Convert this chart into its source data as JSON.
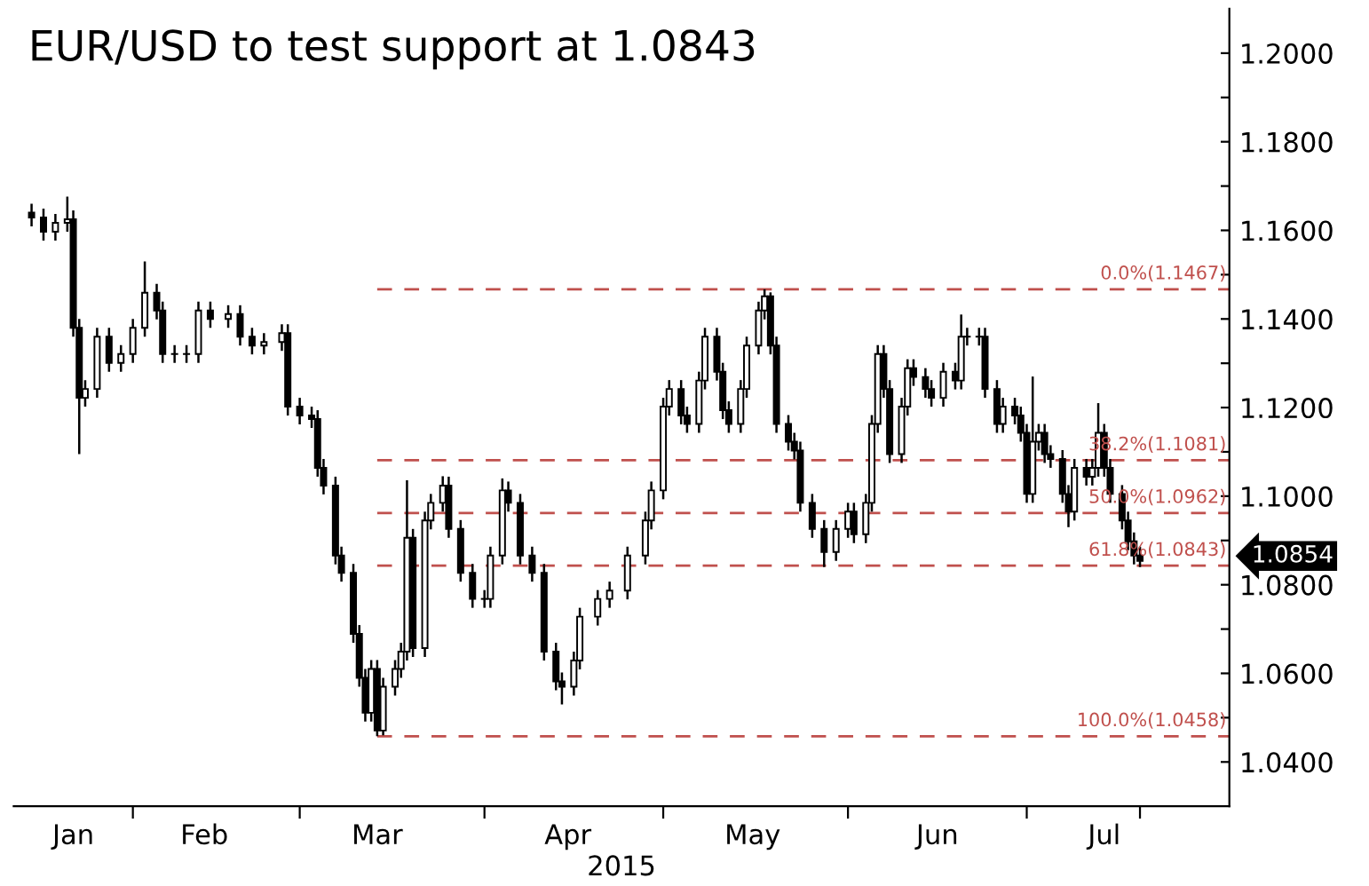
{
  "chart_data": {
    "type": "candlestick",
    "title": "EUR/USD to test support at 1.0843",
    "xlabel": "2015",
    "color": "#000000",
    "x": [
      "2015-01-15",
      "2015-01-17",
      "2015-01-19",
      "2015-01-21",
      "2015-01-22",
      "2015-01-23",
      "2015-01-24",
      "2015-01-26",
      "2015-01-28",
      "2015-01-30",
      "2015-02-01",
      "2015-02-03",
      "2015-02-05",
      "2015-02-06",
      "2015-02-08",
      "2015-02-10",
      "2015-02-12",
      "2015-02-14",
      "2015-02-17",
      "2015-02-19",
      "2015-02-21",
      "2015-02-23",
      "2015-02-26",
      "2015-02-27",
      "2015-03-01",
      "2015-03-03",
      "2015-03-04",
      "2015-03-05",
      "2015-03-07",
      "2015-03-08",
      "2015-03-10",
      "2015-03-11",
      "2015-03-12",
      "2015-03-13",
      "2015-03-14",
      "2015-03-15",
      "2015-03-17",
      "2015-03-18",
      "2015-03-19",
      "2015-03-20",
      "2015-03-22",
      "2015-03-23",
      "2015-03-25",
      "2015-03-26",
      "2015-03-28",
      "2015-03-30",
      "2015-04-01",
      "2015-04-02",
      "2015-04-04",
      "2015-04-05",
      "2015-04-07",
      "2015-04-09",
      "2015-04-11",
      "2015-04-13",
      "2015-04-14",
      "2015-04-16",
      "2015-04-17",
      "2015-04-20",
      "2015-04-22",
      "2015-04-25",
      "2015-04-28",
      "2015-04-29",
      "2015-05-01",
      "2015-05-02",
      "2015-05-04",
      "2015-05-05",
      "2015-05-07",
      "2015-05-08",
      "2015-05-10",
      "2015-05-11",
      "2015-05-12",
      "2015-05-14",
      "2015-05-15",
      "2015-05-17",
      "2015-05-18",
      "2015-05-19",
      "2015-05-20",
      "2015-05-22",
      "2015-05-23",
      "2015-05-24",
      "2015-05-26",
      "2015-05-28",
      "2015-05-30",
      "2015-06-01",
      "2015-06-02",
      "2015-06-04",
      "2015-06-05",
      "2015-06-06",
      "2015-06-07",
      "2015-06-08",
      "2015-06-10",
      "2015-06-11",
      "2015-06-12",
      "2015-06-14",
      "2015-06-15",
      "2015-06-17",
      "2015-06-19",
      "2015-06-20",
      "2015-06-21",
      "2015-06-23",
      "2015-06-24",
      "2015-06-26",
      "2015-06-27",
      "2015-06-29",
      "2015-06-30",
      "2015-07-01",
      "2015-07-02",
      "2015-07-03",
      "2015-07-04",
      "2015-07-05",
      "2015-07-07",
      "2015-07-08",
      "2015-07-09",
      "2015-07-11",
      "2015-07-12",
      "2015-07-13",
      "2015-07-14",
      "2015-07-15",
      "2015-07-17",
      "2015-07-18",
      "2015-07-19",
      "2015-07-20"
    ],
    "ohlc": [
      [
        1.164,
        1.166,
        1.1609,
        1.1629
      ],
      [
        1.1629,
        1.1649,
        1.1577,
        1.1597
      ],
      [
        1.1597,
        1.1637,
        1.1577,
        1.1617
      ],
      [
        1.1617,
        1.1676,
        1.1597,
        1.1625
      ],
      [
        1.1625,
        1.1645,
        1.136,
        1.138
      ],
      [
        1.138,
        1.14,
        1.1095,
        1.1222
      ],
      [
        1.1222,
        1.1262,
        1.1202,
        1.1242
      ],
      [
        1.1242,
        1.138,
        1.1222,
        1.136
      ],
      [
        1.136,
        1.138,
        1.1281,
        1.1301
      ],
      [
        1.1301,
        1.1341,
        1.1281,
        1.1321
      ],
      [
        1.1321,
        1.14,
        1.1301,
        1.138
      ],
      [
        1.138,
        1.153,
        1.136,
        1.1459
      ],
      [
        1.1459,
        1.1479,
        1.1399,
        1.1419
      ],
      [
        1.1419,
        1.1439,
        1.1301,
        1.1321
      ],
      [
        1.1321,
        1.1341,
        1.1301,
        1.1321
      ],
      [
        1.1321,
        1.1341,
        1.1301,
        1.1321
      ],
      [
        1.1321,
        1.1439,
        1.1301,
        1.1419
      ],
      [
        1.1419,
        1.1439,
        1.138,
        1.14
      ],
      [
        1.14,
        1.1431,
        1.138,
        1.1411
      ],
      [
        1.1411,
        1.1431,
        1.134,
        1.136
      ],
      [
        1.136,
        1.138,
        1.132,
        1.134
      ],
      [
        1.134,
        1.1368,
        1.132,
        1.1348
      ],
      [
        1.1348,
        1.1388,
        1.1328,
        1.1368
      ],
      [
        1.1368,
        1.1388,
        1.1182,
        1.1202
      ],
      [
        1.1202,
        1.1222,
        1.1162,
        1.1182
      ],
      [
        1.1182,
        1.1202,
        1.1154,
        1.1174
      ],
      [
        1.1174,
        1.1194,
        1.1044,
        1.1064
      ],
      [
        1.1064,
        1.1084,
        1.1004,
        1.1024
      ],
      [
        1.1024,
        1.1044,
        1.0846,
        1.0866
      ],
      [
        1.0866,
        1.0886,
        1.0807,
        1.0827
      ],
      [
        1.0827,
        1.0847,
        1.0669,
        1.0689
      ],
      [
        1.0689,
        1.0709,
        1.057,
        1.059
      ],
      [
        1.059,
        1.061,
        1.0491,
        1.0511
      ],
      [
        1.0511,
        1.063,
        1.0491,
        1.061
      ],
      [
        1.061,
        1.063,
        1.0458,
        1.0471
      ],
      [
        1.0471,
        1.059,
        1.046,
        1.057
      ],
      [
        1.057,
        1.063,
        1.055,
        1.061
      ],
      [
        1.061,
        1.0669,
        1.059,
        1.0649
      ],
      [
        1.0649,
        1.1036,
        1.0629,
        1.0906
      ],
      [
        1.0906,
        1.0926,
        1.0637,
        1.0657
      ],
      [
        1.0657,
        1.0965,
        1.0637,
        1.0945
      ],
      [
        1.0945,
        1.1005,
        1.0925,
        1.0985
      ],
      [
        1.0985,
        1.1045,
        1.0965,
        1.1024
      ],
      [
        1.1024,
        1.1044,
        1.0906,
        1.0926
      ],
      [
        1.0926,
        1.0946,
        1.0807,
        1.0827
      ],
      [
        1.0827,
        1.0847,
        1.0748,
        1.0768
      ],
      [
        1.0768,
        1.0788,
        1.0748,
        1.0768
      ],
      [
        1.0768,
        1.0886,
        1.0748,
        1.0866
      ],
      [
        1.0866,
        1.104,
        1.0846,
        1.1013
      ],
      [
        1.1013,
        1.1033,
        1.0965,
        1.0985
      ],
      [
        1.0985,
        1.1005,
        1.0846,
        1.0866
      ],
      [
        1.0866,
        1.0886,
        1.0807,
        1.0827
      ],
      [
        1.0827,
        1.0847,
        1.0629,
        1.0649
      ],
      [
        1.0649,
        1.0669,
        1.0562,
        1.0582
      ],
      [
        1.0582,
        1.0602,
        1.053,
        1.057
      ],
      [
        1.057,
        1.0649,
        1.055,
        1.0629
      ],
      [
        1.0629,
        1.0748,
        1.0609,
        1.0728
      ],
      [
        1.0728,
        1.0788,
        1.0708,
        1.0768
      ],
      [
        1.0768,
        1.0807,
        1.0748,
        1.0787
      ],
      [
        1.0787,
        1.0886,
        1.0767,
        1.0866
      ],
      [
        1.0866,
        1.0965,
        1.0846,
        1.0945
      ],
      [
        1.0945,
        1.1033,
        1.0925,
        1.1013
      ],
      [
        1.1013,
        1.1222,
        1.0993,
        1.1202
      ],
      [
        1.1202,
        1.1262,
        1.1182,
        1.1242
      ],
      [
        1.1242,
        1.1262,
        1.1162,
        1.1182
      ],
      [
        1.1182,
        1.1202,
        1.1143,
        1.1163
      ],
      [
        1.1163,
        1.1281,
        1.1143,
        1.1261
      ],
      [
        1.1261,
        1.138,
        1.1241,
        1.136
      ],
      [
        1.136,
        1.138,
        1.1261,
        1.1281
      ],
      [
        1.1281,
        1.1301,
        1.1174,
        1.1194
      ],
      [
        1.1194,
        1.1214,
        1.1143,
        1.1163
      ],
      [
        1.1163,
        1.1262,
        1.1143,
        1.1242
      ],
      [
        1.1242,
        1.136,
        1.1222,
        1.134
      ],
      [
        1.134,
        1.1439,
        1.132,
        1.1419
      ],
      [
        1.1419,
        1.1467,
        1.1399,
        1.1451
      ],
      [
        1.1451,
        1.146,
        1.132,
        1.134
      ],
      [
        1.134,
        1.136,
        1.1143,
        1.1163
      ],
      [
        1.1163,
        1.1183,
        1.1103,
        1.1123
      ],
      [
        1.1123,
        1.1143,
        1.1083,
        1.1103
      ],
      [
        1.1103,
        1.1123,
        1.0965,
        1.0985
      ],
      [
        1.0985,
        1.1005,
        1.0906,
        1.0926
      ],
      [
        1.0926,
        1.0946,
        1.084,
        1.0874
      ],
      [
        1.0874,
        1.0946,
        1.0854,
        1.0926
      ],
      [
        1.0926,
        1.0985,
        1.0906,
        1.0965
      ],
      [
        1.0965,
        1.0985,
        1.0894,
        1.0914
      ],
      [
        1.0914,
        1.1005,
        1.0894,
        1.0985
      ],
      [
        1.0985,
        1.1183,
        1.0965,
        1.1163
      ],
      [
        1.1163,
        1.1341,
        1.1143,
        1.1321
      ],
      [
        1.1321,
        1.1341,
        1.1222,
        1.1242
      ],
      [
        1.1242,
        1.1262,
        1.1075,
        1.1095
      ],
      [
        1.1095,
        1.1222,
        1.1075,
        1.1202
      ],
      [
        1.1202,
        1.1309,
        1.1182,
        1.1289
      ],
      [
        1.1289,
        1.1309,
        1.1249,
        1.1269
      ],
      [
        1.1269,
        1.1289,
        1.1222,
        1.1242
      ],
      [
        1.1242,
        1.1262,
        1.1202,
        1.1222
      ],
      [
        1.1222,
        1.1301,
        1.1202,
        1.1281
      ],
      [
        1.1281,
        1.1301,
        1.1241,
        1.1261
      ],
      [
        1.1261,
        1.141,
        1.1241,
        1.136
      ],
      [
        1.136,
        1.138,
        1.134,
        1.136
      ],
      [
        1.136,
        1.138,
        1.134,
        1.136
      ],
      [
        1.136,
        1.138,
        1.1222,
        1.1242
      ],
      [
        1.1242,
        1.1262,
        1.1143,
        1.1163
      ],
      [
        1.1163,
        1.1222,
        1.1143,
        1.1202
      ],
      [
        1.1202,
        1.1222,
        1.1162,
        1.1182
      ],
      [
        1.1182,
        1.1202,
        1.1123,
        1.1143
      ],
      [
        1.1143,
        1.1163,
        1.0985,
        1.1005
      ],
      [
        1.1005,
        1.127,
        1.0985,
        1.1123
      ],
      [
        1.1123,
        1.1163,
        1.1103,
        1.1143
      ],
      [
        1.1143,
        1.1163,
        1.1075,
        1.1095
      ],
      [
        1.1095,
        1.1115,
        1.1064,
        1.1084
      ],
      [
        1.1084,
        1.1104,
        1.0985,
        1.1005
      ],
      [
        1.1005,
        1.1025,
        1.093,
        1.0965
      ],
      [
        1.0965,
        1.1084,
        1.0945,
        1.1064
      ],
      [
        1.1064,
        1.1084,
        1.1024,
        1.1044
      ],
      [
        1.1044,
        1.1084,
        1.1024,
        1.1064
      ],
      [
        1.1064,
        1.121,
        1.1044,
        1.1143
      ],
      [
        1.1143,
        1.1163,
        1.1044,
        1.1064
      ],
      [
        1.1064,
        1.1084,
        1.0985,
        1.1005
      ],
      [
        1.1005,
        1.1025,
        1.0925,
        1.0945
      ],
      [
        1.0945,
        1.0965,
        1.0878,
        1.0898
      ],
      [
        1.0898,
        1.0918,
        1.0846,
        1.0866
      ],
      [
        1.0866,
        1.0886,
        1.084,
        1.0854
      ]
    ],
    "xlim": [
      "2015-01-12",
      "2015-08-04"
    ],
    "xticks": [
      {
        "value": "2015-01-22",
        "label": "Jan"
      },
      {
        "value": "2015-02-01",
        "label": null
      },
      {
        "value": "2015-02-13",
        "label": "Feb"
      },
      {
        "value": "2015-03-01",
        "label": null
      },
      {
        "value": "2015-03-14",
        "label": "Mar"
      },
      {
        "value": "2015-04-01",
        "label": null
      },
      {
        "value": "2015-04-15",
        "label": "Apr"
      },
      {
        "value": "2015-05-01",
        "label": null
      },
      {
        "value": "2015-05-16",
        "label": "May"
      },
      {
        "value": "2015-06-01",
        "label": null
      },
      {
        "value": "2015-06-16",
        "label": "Jun"
      },
      {
        "value": "2015-07-01",
        "label": null
      },
      {
        "value": "2015-07-14",
        "label": "Jul"
      },
      {
        "value": "2015-07-20",
        "label": null
      }
    ],
    "ylim": [
      1.03,
      1.21
    ],
    "yticks": [
      {
        "value": 1.04,
        "label": "1.0400"
      },
      {
        "value": 1.05,
        "label": null
      },
      {
        "value": 1.06,
        "label": "1.0600"
      },
      {
        "value": 1.07,
        "label": null
      },
      {
        "value": 1.08,
        "label": "1.0800"
      },
      {
        "value": 1.09,
        "label": null
      },
      {
        "value": 1.1,
        "label": "1.1000"
      },
      {
        "value": 1.11,
        "label": null
      },
      {
        "value": 1.12,
        "label": "1.1200"
      },
      {
        "value": 1.13,
        "label": null
      },
      {
        "value": 1.14,
        "label": "1.1400"
      },
      {
        "value": 1.15,
        "label": null
      },
      {
        "value": 1.16,
        "label": "1.1600"
      },
      {
        "value": 1.17,
        "label": null
      },
      {
        "value": 1.18,
        "label": "1.1800"
      },
      {
        "value": 1.19,
        "label": null
      },
      {
        "value": 1.2,
        "label": "1.2000"
      }
    ],
    "ref_lines": [
      {
        "axis": "y",
        "value": 1.1467,
        "label": "0.0%(1.1467)",
        "color": "#c0504d",
        "line_style": "dashed"
      },
      {
        "axis": "y",
        "value": 1.1081,
        "label": "38.2%(1.1081)",
        "color": "#c0504d",
        "line_style": "dashed"
      },
      {
        "axis": "y",
        "value": 1.0962,
        "label": "50.0%(1.0962)",
        "color": "#c0504d",
        "line_style": "dashed"
      },
      {
        "axis": "y",
        "value": 1.0843,
        "label": "61.8%(1.0843)",
        "color": "#c0504d",
        "line_style": "dashed"
      },
      {
        "axis": "y",
        "value": 1.0458,
        "label": "100.0%(1.0458)",
        "color": "#c0504d",
        "line_style": "dashed"
      }
    ],
    "annotations": [
      "1.0854"
    ],
    "grid": false,
    "legend": false
  }
}
